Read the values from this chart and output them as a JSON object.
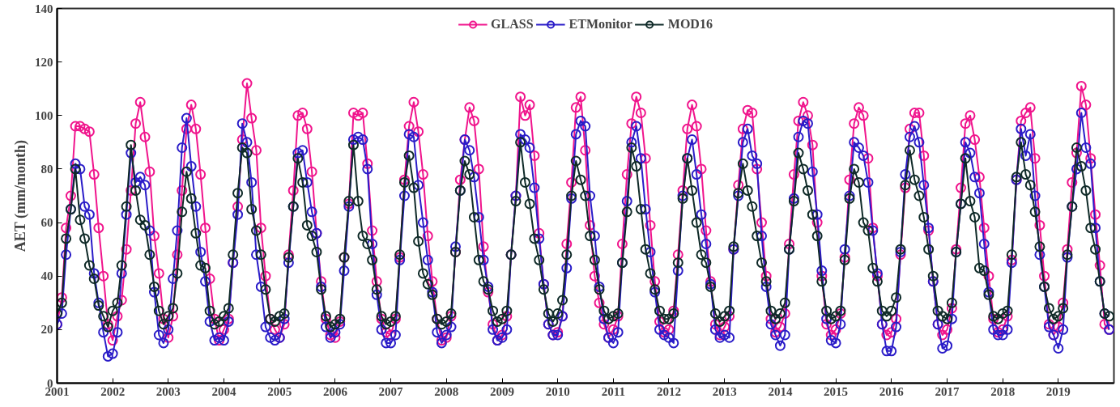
{
  "chart_data": {
    "type": "line",
    "ylabel": "AET (mm/month)",
    "ylim": [
      0,
      140
    ],
    "yticks": [
      0,
      20,
      40,
      60,
      80,
      100,
      120,
      140
    ],
    "xlim": [
      "2001-01",
      "2020-01"
    ],
    "xticks": [
      "2001",
      "2002",
      "2003",
      "2004",
      "2005",
      "2006",
      "2007",
      "2008",
      "2009",
      "2010",
      "2011",
      "2012",
      "2013",
      "2014",
      "2015",
      "2016",
      "2017",
      "2018",
      "2019"
    ],
    "grid": false,
    "legend": "top",
    "marker": "circle",
    "line_style": "solid",
    "x": [
      "2001-01",
      "2001-02",
      "2001-03",
      "2001-04",
      "2001-05",
      "2001-06",
      "2001-07",
      "2001-08",
      "2001-09",
      "2001-10",
      "2001-11",
      "2001-12",
      "2002-01",
      "2002-02",
      "2002-03",
      "2002-04",
      "2002-05",
      "2002-06",
      "2002-07",
      "2002-08",
      "2002-09",
      "2002-10",
      "2002-11",
      "2002-12",
      "2003-01",
      "2003-02",
      "2003-03",
      "2003-04",
      "2003-05",
      "2003-06",
      "2003-07",
      "2003-08",
      "2003-09",
      "2003-10",
      "2003-11",
      "2003-12",
      "2004-01",
      "2004-02",
      "2004-03",
      "2004-04",
      "2004-05",
      "2004-06",
      "2004-07",
      "2004-08",
      "2004-09",
      "2004-10",
      "2004-11",
      "2004-12",
      "2005-01",
      "2005-02",
      "2005-03",
      "2005-04",
      "2005-05",
      "2005-06",
      "2005-07",
      "2005-08",
      "2005-09",
      "2005-10",
      "2005-11",
      "2005-12",
      "2006-01",
      "2006-02",
      "2006-03",
      "2006-04",
      "2006-05",
      "2006-06",
      "2006-07",
      "2006-08",
      "2006-09",
      "2006-10",
      "2006-11",
      "2006-12",
      "2007-01",
      "2007-02",
      "2007-03",
      "2007-04",
      "2007-05",
      "2007-06",
      "2007-07",
      "2007-08",
      "2007-09",
      "2007-10",
      "2007-11",
      "2007-12",
      "2008-01",
      "2008-02",
      "2008-03",
      "2008-04",
      "2008-05",
      "2008-06",
      "2008-07",
      "2008-08",
      "2008-09",
      "2008-10",
      "2008-11",
      "2008-12",
      "2009-01",
      "2009-02",
      "2009-03",
      "2009-04",
      "2009-05",
      "2009-06",
      "2009-07",
      "2009-08",
      "2009-09",
      "2009-10",
      "2009-11",
      "2009-12",
      "2010-01",
      "2010-02",
      "2010-03",
      "2010-04",
      "2010-05",
      "2010-06",
      "2010-07",
      "2010-08",
      "2010-09",
      "2010-10",
      "2010-11",
      "2010-12",
      "2011-01",
      "2011-02",
      "2011-03",
      "2011-04",
      "2011-05",
      "2011-06",
      "2011-07",
      "2011-08",
      "2011-09",
      "2011-10",
      "2011-11",
      "2011-12",
      "2012-01",
      "2012-02",
      "2012-03",
      "2012-04",
      "2012-05",
      "2012-06",
      "2012-07",
      "2012-08",
      "2012-09",
      "2012-10",
      "2012-11",
      "2012-12",
      "2013-01",
      "2013-02",
      "2013-03",
      "2013-04",
      "2013-05",
      "2013-06",
      "2013-07",
      "2013-08",
      "2013-09",
      "2013-10",
      "2013-11",
      "2013-12",
      "2014-01",
      "2014-02",
      "2014-03",
      "2014-04",
      "2014-05",
      "2014-06",
      "2014-07",
      "2014-08",
      "2014-09",
      "2014-10",
      "2014-11",
      "2014-12",
      "2015-01",
      "2015-02",
      "2015-03",
      "2015-04",
      "2015-05",
      "2015-06",
      "2015-07",
      "2015-08",
      "2015-09",
      "2015-10",
      "2015-11",
      "2015-12",
      "2016-01",
      "2016-02",
      "2016-03",
      "2016-04",
      "2016-05",
      "2016-06",
      "2016-07",
      "2016-08",
      "2016-09",
      "2016-10",
      "2016-11",
      "2016-12",
      "2017-01",
      "2017-02",
      "2017-03",
      "2017-04",
      "2017-05",
      "2017-06",
      "2017-07",
      "2017-08",
      "2017-09",
      "2017-10",
      "2017-11",
      "2017-12",
      "2018-01",
      "2018-02",
      "2018-03",
      "2018-04",
      "2018-05",
      "2018-06",
      "2018-07",
      "2018-08",
      "2018-09",
      "2018-10",
      "2018-11",
      "2018-12",
      "2019-01",
      "2019-02",
      "2019-03",
      "2019-04",
      "2019-05",
      "2019-06",
      "2019-07",
      "2019-08",
      "2019-09",
      "2019-10",
      "2019-11",
      "2019-12"
    ],
    "series": [
      {
        "name": "GLASS",
        "color": "#f0148c",
        "values": [
          22,
          32,
          58,
          70,
          96,
          96,
          95,
          94,
          78,
          58,
          40,
          22,
          16,
          25,
          31,
          50,
          72,
          97,
          105,
          92,
          79,
          55,
          41,
          24,
          17,
          25,
          48,
          72,
          95,
          104,
          95,
          78,
          58,
          39,
          24,
          16,
          20,
          24,
          45,
          66,
          91,
          112,
          99,
          87,
          58,
          40,
          24,
          20,
          17,
          22,
          48,
          72,
          100,
          101,
          95,
          79,
          56,
          38,
          24,
          18,
          17,
          23,
          47,
          67,
          101,
          100,
          101,
          82,
          57,
          38,
          24,
          19,
          18,
          24,
          47,
          76,
          96,
          105,
          94,
          78,
          55,
          38,
          24,
          16,
          17,
          25,
          49,
          76,
          91,
          103,
          98,
          80,
          51,
          34,
          22,
          16,
          18,
          25,
          48,
          70,
          107,
          100,
          104,
          85,
          56,
          37,
          22,
          18,
          19,
          25,
          52,
          75,
          103,
          107,
          87,
          59,
          40,
          30,
          22,
          17,
          20,
          25,
          52,
          78,
          97,
          107,
          101,
          84,
          59,
          38,
          23,
          19,
          20,
          27,
          48,
          72,
          95,
          104,
          96,
          80,
          57,
          38,
          22,
          18,
          21,
          25,
          50,
          74,
          95,
          102,
          101,
          80,
          60,
          40,
          24,
          19,
          21,
          26,
          52,
          78,
          98,
          105,
          100,
          89,
          60,
          40,
          22,
          18,
          20,
          26,
          47,
          76,
          97,
          103,
          100,
          84,
          58,
          40,
          22,
          18,
          19,
          24,
          48,
          73,
          95,
          101,
          101,
          85,
          57,
          38,
          22,
          18,
          20,
          28,
          50,
          73,
          97,
          100,
          91,
          77,
          58,
          40,
          24,
          19,
          20,
          25,
          46,
          76,
          98,
          101,
          103,
          84,
          59,
          40,
          22,
          18,
          21,
          30,
          50,
          75,
          86,
          111,
          104,
          84,
          63,
          44,
          22,
          20
        ]
      },
      {
        "name": "ETMonitor",
        "color": "#2a1cc8",
        "values": [
          22,
          26,
          48,
          65,
          82,
          80,
          66,
          63,
          41,
          30,
          19,
          10,
          11,
          19,
          41,
          63,
          86,
          75,
          77,
          74,
          57,
          34,
          18,
          15,
          20,
          39,
          57,
          88,
          99,
          81,
          66,
          49,
          38,
          23,
          16,
          17,
          16,
          23,
          45,
          63,
          97,
          90,
          75,
          48,
          36,
          21,
          17,
          16,
          17,
          24,
          45,
          66,
          86,
          87,
          75,
          64,
          56,
          36,
          21,
          17,
          19,
          22,
          42,
          66,
          91,
          92,
          91,
          80,
          52,
          33,
          20,
          15,
          15,
          18,
          46,
          70,
          93,
          92,
          74,
          60,
          46,
          34,
          19,
          15,
          18,
          21,
          51,
          72,
          91,
          87,
          77,
          62,
          46,
          36,
          20,
          16,
          17,
          20,
          48,
          70,
          93,
          91,
          88,
          73,
          54,
          37,
          22,
          18,
          18,
          25,
          43,
          69,
          93,
          98,
          96,
          70,
          55,
          36,
          24,
          17,
          15,
          19,
          45,
          68,
          90,
          96,
          84,
          65,
          49,
          34,
          20,
          18,
          17,
          15,
          42,
          70,
          84,
          91,
          78,
          63,
          52,
          37,
          20,
          17,
          18,
          17,
          50,
          70,
          90,
          95,
          85,
          82,
          55,
          36,
          22,
          18,
          14,
          18,
          50,
          69,
          92,
          98,
          97,
          79,
          63,
          42,
          24,
          16,
          15,
          22,
          50,
          70,
          90,
          88,
          85,
          75,
          57,
          41,
          22,
          12,
          12,
          21,
          49,
          78,
          92,
          96,
          90,
          74,
          58,
          38,
          22,
          13,
          14,
          24,
          49,
          67,
          90,
          86,
          77,
          71,
          52,
          34,
          20,
          18,
          18,
          20,
          45,
          76,
          95,
          85,
          93,
          70,
          48,
          36,
          21,
          18,
          13,
          20,
          47,
          66,
          80,
          101,
          88,
          82,
          58,
          38,
          26,
          20
        ]
      },
      {
        "name": "MOD16",
        "color": "#0f2a28",
        "values": [
          26,
          30,
          54,
          65,
          80,
          61,
          54,
          44,
          39,
          29,
          25,
          21,
          27,
          30,
          44,
          66,
          89,
          72,
          61,
          59,
          48,
          36,
          27,
          22,
          25,
          28,
          41,
          64,
          79,
          69,
          56,
          44,
          43,
          27,
          22,
          23,
          25,
          28,
          48,
          71,
          88,
          86,
          65,
          57,
          48,
          35,
          24,
          23,
          25,
          26,
          47,
          66,
          84,
          75,
          59,
          55,
          49,
          35,
          25,
          21,
          22,
          24,
          47,
          68,
          89,
          68,
          55,
          52,
          46,
          35,
          25,
          22,
          23,
          25,
          48,
          75,
          85,
          73,
          53,
          41,
          37,
          33,
          24,
          22,
          23,
          26,
          49,
          72,
          83,
          78,
          62,
          46,
          38,
          35,
          27,
          23,
          24,
          27,
          48,
          68,
          90,
          75,
          67,
          54,
          46,
          35,
          26,
          23,
          26,
          31,
          48,
          70,
          83,
          76,
          70,
          55,
          46,
          35,
          27,
          24,
          25,
          26,
          45,
          64,
          88,
          81,
          65,
          50,
          41,
          35,
          27,
          24,
          24,
          26,
          45,
          69,
          84,
          72,
          60,
          48,
          45,
          36,
          26,
          23,
          25,
          27,
          51,
          71,
          82,
          72,
          66,
          55,
          45,
          38,
          27,
          24,
          26,
          30,
          50,
          68,
          86,
          80,
          72,
          63,
          55,
          38,
          27,
          24,
          25,
          27,
          46,
          69,
          80,
          75,
          60,
          57,
          43,
          38,
          27,
          25,
          27,
          32,
          50,
          74,
          87,
          76,
          70,
          62,
          50,
          40,
          27,
          25,
          24,
          30,
          49,
          67,
          84,
          68,
          62,
          43,
          42,
          33,
          25,
          24,
          26,
          27,
          48,
          77,
          90,
          78,
          74,
          64,
          51,
          36,
          28,
          24,
          25,
          28,
          48,
          66,
          88,
          81,
          72,
          58,
          50,
          38,
          26,
          25
        ]
      }
    ]
  }
}
